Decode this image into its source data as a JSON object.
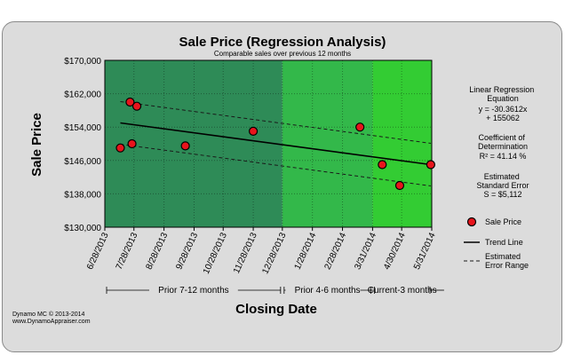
{
  "chart_data": {
    "type": "scatter",
    "title": "Sale Price (Regression Analysis)",
    "subtitle": "Comparable sales over previous 12 months",
    "xlabel": "Closing Date",
    "ylabel": "Sale Price",
    "x_ticks": [
      "6/28/2013",
      "7/28/2013",
      "8/28/2013",
      "9/28/2013",
      "10/28/2013",
      "11/28/2013",
      "12/28/2013",
      "1/28/2014",
      "2/28/2014",
      "3/31/2014",
      "4/30/2014",
      "5/31/2014"
    ],
    "y_ticks": [
      "$130,000",
      "$138,000",
      "$146,000",
      "$154,000",
      "$162,000",
      "$170,000"
    ],
    "ylim": [
      130000,
      170000
    ],
    "xlim": [
      "2013-06-28",
      "2014-05-31"
    ],
    "points": [
      {
        "x": "2013-07-14",
        "y": 149000
      },
      {
        "x": "2013-07-24",
        "y": 160000
      },
      {
        "x": "2013-07-26",
        "y": 150000
      },
      {
        "x": "2013-07-31",
        "y": 159000
      },
      {
        "x": "2013-09-19",
        "y": 149500
      },
      {
        "x": "2013-11-28",
        "y": 153000
      },
      {
        "x": "2014-03-18",
        "y": 154000
      },
      {
        "x": "2014-04-10",
        "y": 145000
      },
      {
        "x": "2014-04-28",
        "y": 140000
      },
      {
        "x": "2014-05-30",
        "y": 145000
      }
    ],
    "trend_line": {
      "x": [
        "2013-07-14",
        "2014-05-30"
      ],
      "y": [
        155000,
        145000
      ]
    },
    "error_upper": {
      "x": [
        "2013-07-14",
        "2014-05-30"
      ],
      "y": [
        160112,
        150112
      ]
    },
    "error_lower": {
      "x": [
        "2013-07-14",
        "2014-05-30"
      ],
      "y": [
        149888,
        139888
      ]
    },
    "periods": [
      {
        "label": "Prior 7-12 months",
        "start": "2013-06-28",
        "end": "2013-12-28",
        "color": "#2e8b57"
      },
      {
        "label": "Prior 4-6 months",
        "start": "2013-12-28",
        "end": "2014-03-31",
        "color": "#33b84a"
      },
      {
        "label": "Current-3 months",
        "start": "2014-03-31",
        "end": "2014-05-31",
        "color": "#33cc33"
      }
    ],
    "marker_color": "#e8141c",
    "grid": true,
    "legend": [
      {
        "label": "Sale Price",
        "kind": "marker"
      },
      {
        "label": "Trend Line",
        "kind": "solid"
      },
      {
        "label": "Estimated Error Range",
        "kind": "dashed"
      }
    ],
    "legend_placement": "right"
  },
  "stats": {
    "regression_title": "Linear Regression Equation",
    "regression_eq1": "y = -30.3612x",
    "regression_eq2": "+ 155062",
    "cod_title": "Coefficient of Determination",
    "cod_value": "R² = 41.14 %",
    "se_title": "Estimated Standard Error",
    "se_value": "S = $5,112"
  },
  "footer": {
    "line1": "Dynamo MC   © 2013-2014",
    "line2": "www.DynamoAppraiser.com"
  }
}
